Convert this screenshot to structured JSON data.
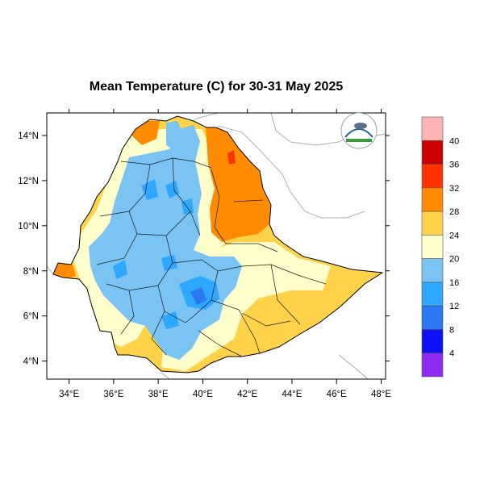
{
  "title": "Mean Temperature (C) for 30-31 May 2025",
  "x_tick_labels": [
    "34°E",
    "36°E",
    "38°E",
    "40°E",
    "42°E",
    "44°E",
    "46°E",
    "48°E"
  ],
  "y_tick_labels": [
    "14°N",
    "12°N",
    "10°N",
    "8°N",
    "6°N",
    "4°N"
  ],
  "colorbar": {
    "colors": [
      "#ffb4b4",
      "#cc0000",
      "#ff3300",
      "#ff8c00",
      "#ffd24a",
      "#ffffcc",
      "#7ac4f4",
      "#2ea8ff",
      "#2b78f0",
      "#0f10f5",
      "#8d2cf0"
    ],
    "labels": [
      "40",
      "36",
      "32",
      "28",
      "24",
      "20",
      "16",
      "12",
      "8",
      "4"
    ]
  },
  "chart_data": {
    "type": "heatmap",
    "title": "Mean Temperature (C) for 30-31 May 2025",
    "x_range": [
      33,
      48.2
    ],
    "y_range": [
      3.2,
      15
    ],
    "x_ticks": [
      34,
      36,
      38,
      40,
      42,
      44,
      46,
      48
    ],
    "y_ticks": [
      14,
      12,
      10,
      8,
      6,
      4
    ],
    "colorbar_levels": [
      4,
      8,
      12,
      16,
      20,
      24,
      28,
      32,
      36,
      40
    ],
    "colorbar_colors": [
      "#8d2cf0",
      "#0f10f5",
      "#2b78f0",
      "#2ea8ff",
      "#7ac4f4",
      "#ffffcc",
      "#ffd24a",
      "#ff8c00",
      "#ff3300",
      "#cc0000",
      "#ffb4b4"
    ]
  }
}
